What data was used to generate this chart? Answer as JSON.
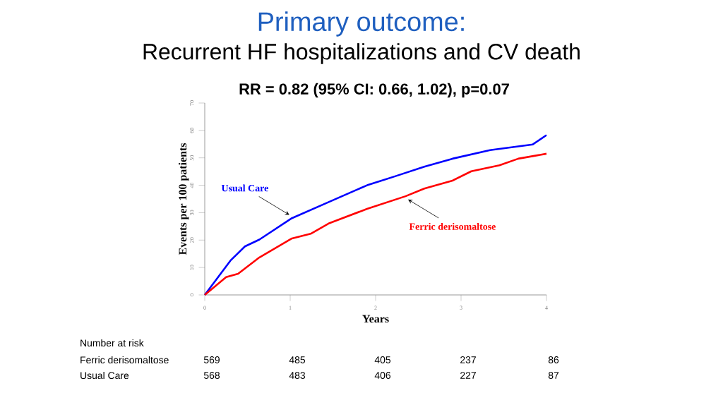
{
  "chart_data": {
    "type": "line",
    "title": "Primary outcome:",
    "subtitle": "Recurrent HF hospitalizations and CV death",
    "xlabel": "Years",
    "ylabel": "Events per 100 patients",
    "xlim": [
      0,
      4
    ],
    "xticks": [
      0,
      1,
      2,
      3,
      4
    ],
    "ylim": [
      0,
      70
    ],
    "yticks": [
      0,
      10,
      20,
      30,
      40,
      50,
      60,
      70
    ],
    "grid": false,
    "marker": "none",
    "line_style": "solid",
    "series": [
      {
        "name": "Usual Care",
        "color": "#0000ff",
        "x": [
          0,
          0.3,
          0.47,
          0.64,
          1.02,
          1.46,
          1.9,
          2.24,
          2.57,
          2.9,
          3.34,
          3.84,
          4
        ],
        "values": [
          0,
          12.5,
          17.7,
          20.2,
          28,
          34,
          40,
          43.4,
          46.8,
          49.7,
          52.8,
          54.9,
          58.3
        ]
      },
      {
        "name": "Ferric derisomaltose",
        "color": "#ff0000",
        "x": [
          0,
          0.25,
          0.39,
          0.64,
          1.02,
          1.24,
          1.46,
          1.9,
          2.35,
          2.57,
          2.9,
          3.12,
          3.45,
          3.67,
          4
        ],
        "values": [
          0,
          6.5,
          7.7,
          13.7,
          20.6,
          22.3,
          26.2,
          31.4,
          36,
          38.8,
          41.7,
          45.1,
          47.3,
          49.7,
          51.5
        ]
      }
    ],
    "annotations": [
      "RR = 0.82 (95% CI: 0.66, 1.02), p=0.07",
      "Number at risk",
      "Ferric derisomaltose",
      "569",
      "485",
      "405",
      "237",
      "86",
      "Usual Care",
      "568",
      "483",
      "406",
      "227",
      "87"
    ]
  }
}
